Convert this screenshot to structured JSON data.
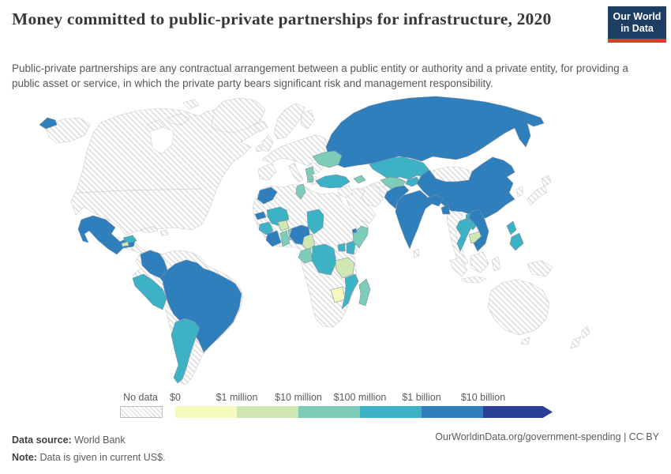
{
  "header": {
    "title": "Money committed to public-private partnerships for infrastructure, 2020",
    "subtitle": "Public-private partnerships are any contractual arrangement between a public entity or authority and a private entity, for providing a public asset or service, in which the private party bears significant risk and management responsibility.",
    "logo": {
      "line1": "Our World",
      "line2": "in Data",
      "bg_color": "#1d3d63",
      "accent_color": "#dc3a2c"
    }
  },
  "legend": {
    "no_data_label": "No data",
    "hatch_line_color": "#d8d8d8"
  },
  "footer": {
    "source_label": "Data source:",
    "source_value": "World Bank",
    "note_label": "Note:",
    "note_value": "Data is given in current US$.",
    "link": "OurWorldinData.org/government-spending | CC BY"
  },
  "chart_data": {
    "type": "heatmap",
    "subtype": "choropleth-world-map",
    "title": "Money committed to public-private partnerships for infrastructure, 2020",
    "unit": "current US$",
    "legend_position": "bottom",
    "bins": [
      "$0",
      "$1 million",
      "$10 million",
      "$100 million",
      "$1 billion",
      "$10 billion"
    ],
    "bin_colors": [
      "#f6fabe",
      "#cfe8b3",
      "#7dccb8",
      "#3db2c5",
      "#2f7fbc",
      "#2b3f98"
    ],
    "no_data": {
      "label": "No data",
      "pattern": "diagonal-hatch"
    },
    "countries": {
      "Russia": "$1 billion",
      "China": "$1 billion",
      "India": "$1 billion",
      "Pakistan": "$1 billion",
      "Bangladesh": "$1 billion",
      "Vietnam": "$1 billion",
      "Brazil": "$1 billion",
      "Colombia": "$1 billion",
      "Mexico": "$1 billion",
      "Morocco": "$1 billion",
      "Nigeria": "$1 billion",
      "Cote d'Ivoire": "$1 billion",
      "Senegal": "$1 billion",
      "Djibouti": "$1 billion",
      "Kazakhstan": "$100 million",
      "Kyrgyzstan": "$100 million",
      "Turkey": "$100 million",
      "Thailand": "$100 million",
      "Laos": "$100 million",
      "Philippines": "$100 million",
      "Peru": "$100 million",
      "Argentina": "$100 million",
      "Honduras": "$100 million",
      "Mali": "$100 million",
      "Chad": "$100 million",
      "Guinea": "$100 million",
      "DR Congo": "$100 million",
      "Uganda": "$100 million",
      "Kenya": "$100 million",
      "Mozambique": "$100 million",
      "Ukraine": "$10 million",
      "Tunisia": "$10 million",
      "Ghana": "$10 million",
      "Benin": "$10 million",
      "Uzbekistan": "$10 million",
      "Gabon": "$10 million",
      "Serbia": "$10 million",
      "Albania": "$10 million",
      "Georgia": "$10 million",
      "Somalia": "$10 million",
      "Madagascar": "$10 million",
      "Cambodia": "$1 million",
      "Burkina Faso": "$1 million",
      "Cameroon": "$1 million",
      "Tanzania": "$1 million",
      "El Salvador": "$1 million",
      "Zimbabwe": "$0"
    }
  }
}
